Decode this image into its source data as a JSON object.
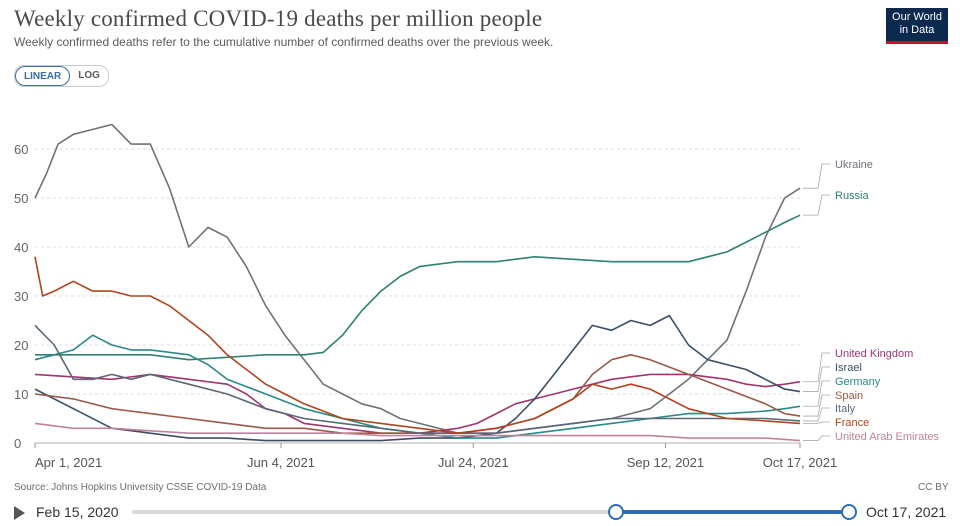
{
  "header": {
    "title": "Weekly confirmed COVID-19 deaths per million people",
    "subtitle": "Weekly confirmed deaths refer to the cumulative number of confirmed deaths over the previous week.",
    "logo_line1": "Our World",
    "logo_line2": "in Data"
  },
  "scale_toggle": {
    "linear": "LINEAR",
    "log": "LOG",
    "selected": "LINEAR"
  },
  "footer": {
    "source": "Source: Johns Hopkins University CSSE COVID-19 Data",
    "license": "CC BY"
  },
  "timeline": {
    "start_label": "Feb 15, 2020",
    "end_label": "Oct 17, 2021"
  },
  "colors": {
    "Ukraine": "#70727a",
    "Russia": "#2e8272",
    "United Kingdom": "#a2346f",
    "Israel": "#3c4e66",
    "Germany": "#2a8a88",
    "Spain": "#9b5a48",
    "Italy": "#596877",
    "France": "#b0451d",
    "United Arab Emirates": "#c0839b"
  },
  "chart_data": {
    "type": "line",
    "title": "Weekly confirmed COVID-19 deaths per million people",
    "xlabel": "",
    "ylabel": "",
    "x_range": [
      0,
      199
    ],
    "ylim": [
      0,
      70
    ],
    "x_unit": "days since Apr 1, 2021",
    "yticks": [
      "0",
      "10",
      "20",
      "30",
      "40",
      "50",
      "60"
    ],
    "ytick_values": [
      0,
      10,
      20,
      30,
      40,
      50,
      60
    ],
    "xticks": [
      {
        "label": "Apr 1, 2021",
        "x": 0
      },
      {
        "label": "Jun 4, 2021",
        "x": 64
      },
      {
        "label": "Jul 24, 2021",
        "x": 114
      },
      {
        "label": "Sep 12, 2021",
        "x": 164
      },
      {
        "label": "Oct 17, 2021",
        "x": 199
      }
    ],
    "series": [
      {
        "name": "Ukraine",
        "label": "Ukraine",
        "end_value": 52,
        "x": [
          0,
          3,
          6,
          10,
          15,
          20,
          25,
          30,
          35,
          40,
          45,
          50,
          55,
          60,
          65,
          70,
          75,
          80,
          85,
          90,
          95,
          100,
          110,
          120,
          130,
          140,
          150,
          160,
          165,
          170,
          175,
          180,
          185,
          190,
          195,
          199
        ],
        "y": [
          50,
          55,
          61,
          63,
          64,
          65,
          61,
          61,
          52,
          40,
          44,
          42,
          36,
          28,
          22,
          17,
          12,
          10,
          8,
          7,
          5,
          4,
          2,
          2,
          3,
          4,
          5,
          7,
          10,
          13,
          17,
          21,
          31,
          42,
          50,
          52
        ]
      },
      {
        "name": "Russia",
        "label": "Russia",
        "end_value": 46.5,
        "x": [
          0,
          10,
          20,
          30,
          40,
          50,
          60,
          70,
          75,
          80,
          85,
          90,
          95,
          100,
          105,
          110,
          120,
          130,
          140,
          150,
          160,
          170,
          175,
          180,
          185,
          190,
          195,
          199
        ],
        "y": [
          18,
          18,
          18,
          18,
          17,
          17.5,
          18,
          18,
          18.5,
          22,
          27,
          31,
          34,
          36,
          36.5,
          37,
          37,
          38,
          37.5,
          37,
          37,
          37,
          38,
          39,
          41,
          43,
          45,
          46.5
        ]
      },
      {
        "name": "United Kingdom",
        "label": "United Kingdom",
        "end_value": 12.5,
        "x": [
          0,
          10,
          20,
          30,
          40,
          50,
          55,
          60,
          65,
          70,
          80,
          90,
          100,
          110,
          115,
          120,
          125,
          130,
          135,
          140,
          145,
          150,
          160,
          170,
          180,
          185,
          190,
          195,
          199
        ],
        "y": [
          14,
          13.5,
          13,
          14,
          13,
          12,
          10,
          7,
          6,
          4,
          3,
          2,
          2,
          3,
          4,
          6,
          8,
          9,
          10,
          11,
          12,
          13,
          14,
          14,
          13,
          12,
          11.5,
          12,
          12.5
        ]
      },
      {
        "name": "Israel",
        "label": "Israel",
        "end_value": 10.5,
        "x": [
          0,
          10,
          20,
          30,
          40,
          50,
          60,
          70,
          80,
          90,
          100,
          110,
          120,
          125,
          130,
          135,
          140,
          145,
          150,
          155,
          160,
          165,
          170,
          175,
          180,
          185,
          190,
          195,
          199
        ],
        "y": [
          11,
          7,
          3,
          2,
          1,
          1,
          0.5,
          0.5,
          0.5,
          0.5,
          1,
          1,
          2,
          5,
          9,
          14,
          19,
          24,
          23,
          25,
          24,
          26,
          20,
          17,
          16,
          15,
          13,
          11,
          10.5
        ]
      },
      {
        "name": "Germany",
        "label": "Germany",
        "end_value": 7.5,
        "x": [
          0,
          5,
          10,
          15,
          20,
          25,
          30,
          40,
          45,
          50,
          60,
          70,
          80,
          90,
          100,
          110,
          120,
          130,
          140,
          150,
          160,
          170,
          180,
          190,
          195,
          199
        ],
        "y": [
          17,
          18,
          19,
          22,
          20,
          19,
          19,
          18,
          16,
          13,
          10,
          7,
          5,
          3,
          2,
          1,
          1,
          2,
          3,
          4,
          5,
          6,
          6,
          6.5,
          7,
          7.5
        ]
      },
      {
        "name": "Spain",
        "label": "Spain",
        "end_value": 5.5,
        "x": [
          0,
          10,
          20,
          30,
          40,
          50,
          60,
          70,
          80,
          90,
          100,
          110,
          120,
          130,
          140,
          145,
          150,
          155,
          160,
          170,
          180,
          190,
          195,
          199
        ],
        "y": [
          10,
          9,
          7,
          6,
          5,
          4,
          3,
          3,
          2,
          2,
          2,
          2,
          3,
          5,
          9,
          14,
          17,
          18,
          17,
          14,
          11,
          8,
          6,
          5.5
        ]
      },
      {
        "name": "Italy",
        "label": "Italy",
        "end_value": 4.5,
        "x": [
          0,
          5,
          10,
          15,
          20,
          25,
          30,
          40,
          50,
          60,
          70,
          80,
          90,
          100,
          110,
          120,
          130,
          140,
          150,
          160,
          170,
          180,
          190,
          199
        ],
        "y": [
          24,
          20,
          13,
          13,
          14,
          13,
          14,
          12,
          10,
          7,
          5,
          4,
          3,
          2,
          2,
          2,
          3,
          4,
          5,
          5,
          5,
          5,
          5,
          4.5
        ]
      },
      {
        "name": "France",
        "label": "France",
        "end_value": 4,
        "x": [
          0,
          2,
          5,
          10,
          15,
          20,
          25,
          30,
          35,
          40,
          45,
          50,
          55,
          60,
          65,
          70,
          80,
          90,
          100,
          110,
          120,
          130,
          140,
          145,
          150,
          155,
          160,
          165,
          170,
          180,
          190,
          199
        ],
        "y": [
          38,
          30,
          31,
          33,
          31,
          31,
          30,
          30,
          28,
          25,
          22,
          18,
          15,
          12,
          10,
          8,
          5,
          4,
          3,
          2,
          3,
          5,
          9,
          12,
          11,
          12,
          11,
          9,
          7,
          5,
          4.5,
          4
        ]
      },
      {
        "name": "United Arab Emirates",
        "label": "United Arab Emirates",
        "end_value": 0.5,
        "x": [
          0,
          10,
          20,
          30,
          40,
          50,
          60,
          70,
          80,
          90,
          100,
          110,
          120,
          130,
          140,
          150,
          160,
          170,
          180,
          190,
          199
        ],
        "y": [
          4,
          3,
          3,
          2.5,
          2,
          2,
          2,
          2,
          2,
          1.5,
          1.5,
          1.5,
          1.5,
          1.5,
          1.5,
          1.5,
          1.5,
          1,
          1,
          1,
          0.5
        ]
      }
    ]
  }
}
